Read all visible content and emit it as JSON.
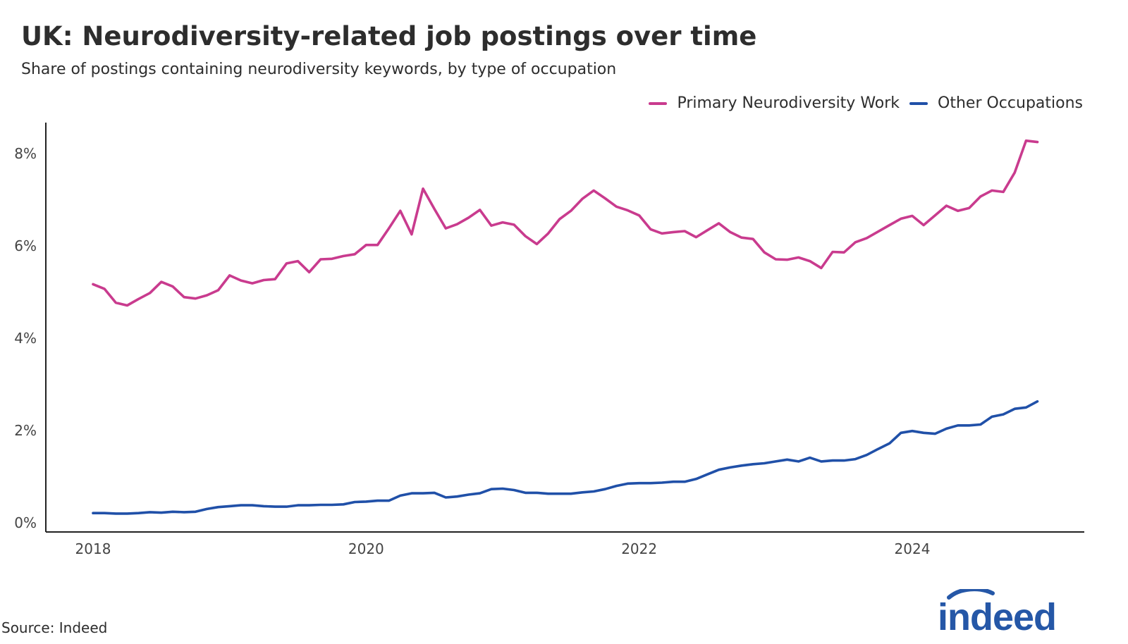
{
  "title": "UK: Neurodiversity-related job postings over time",
  "subtitle": "Share of postings containing neurodiversity keywords, by type of occupation",
  "source": "Source: Indeed",
  "logo_text": "indeed",
  "colors": {
    "primary": "#c93b8e",
    "other": "#2050a8",
    "logo": "#2557a7",
    "axis": "#222222"
  },
  "chart_data": {
    "type": "line",
    "title": "UK: Neurodiversity-related job postings over time",
    "subtitle": "Share of postings containing neurodiversity keywords, by type of occupation",
    "xlabel": "",
    "ylabel": "",
    "x_start": "2018-01",
    "x_step": "month",
    "xlim": [
      "2017-11",
      "2025-04"
    ],
    "ylim": [
      0,
      8.6
    ],
    "x_ticks": [
      {
        "date": "2018-01",
        "label": "2018"
      },
      {
        "date": "2020-01",
        "label": "2020"
      },
      {
        "date": "2022-01",
        "label": "2022"
      },
      {
        "date": "2024-01",
        "label": "2024"
      }
    ],
    "y_ticks": [
      {
        "value": 0,
        "label": "0%"
      },
      {
        "value": 2,
        "label": "2%"
      },
      {
        "value": 4,
        "label": "4%"
      },
      {
        "value": 6,
        "label": "6%"
      },
      {
        "value": 8,
        "label": "8%"
      }
    ],
    "grid": false,
    "legend_position": "top-right",
    "series": [
      {
        "name": "Primary Neurodiversity Work",
        "color": "#c93b8e",
        "values": [
          5.17,
          5.07,
          4.77,
          4.71,
          4.85,
          4.98,
          5.22,
          5.12,
          4.89,
          4.86,
          4.93,
          5.04,
          5.36,
          5.25,
          5.19,
          5.26,
          5.28,
          5.62,
          5.67,
          5.43,
          5.71,
          5.72,
          5.78,
          5.82,
          6.02,
          6.02,
          6.38,
          6.76,
          6.25,
          7.24,
          6.8,
          6.38,
          6.47,
          6.61,
          6.78,
          6.44,
          6.51,
          6.46,
          6.21,
          6.04,
          6.27,
          6.58,
          6.76,
          7.02,
          7.2,
          7.03,
          6.85,
          6.77,
          6.66,
          6.36,
          6.27,
          6.3,
          6.32,
          6.19,
          6.34,
          6.49,
          6.3,
          6.18,
          6.15,
          5.86,
          5.71,
          5.7,
          5.75,
          5.67,
          5.52,
          5.87,
          5.86,
          6.08,
          6.17,
          6.31,
          6.45,
          6.59,
          6.65,
          6.45,
          6.66,
          6.87,
          6.76,
          6.82,
          7.07,
          7.2,
          7.17,
          7.59,
          8.28,
          8.25
        ]
      },
      {
        "name": "Other Occupations",
        "color": "#2050a8",
        "values": [
          0.21,
          0.21,
          0.2,
          0.2,
          0.21,
          0.23,
          0.22,
          0.24,
          0.23,
          0.24,
          0.3,
          0.34,
          0.36,
          0.38,
          0.38,
          0.36,
          0.35,
          0.35,
          0.38,
          0.38,
          0.39,
          0.39,
          0.4,
          0.45,
          0.46,
          0.48,
          0.48,
          0.59,
          0.64,
          0.64,
          0.65,
          0.55,
          0.57,
          0.61,
          0.64,
          0.73,
          0.74,
          0.71,
          0.65,
          0.65,
          0.63,
          0.63,
          0.63,
          0.66,
          0.68,
          0.73,
          0.8,
          0.85,
          0.86,
          0.86,
          0.87,
          0.89,
          0.89,
          0.95,
          1.05,
          1.15,
          1.2,
          1.24,
          1.27,
          1.29,
          1.33,
          1.37,
          1.33,
          1.41,
          1.33,
          1.35,
          1.35,
          1.38,
          1.47,
          1.6,
          1.72,
          1.95,
          1.99,
          1.95,
          1.93,
          2.04,
          2.11,
          2.11,
          2.13,
          2.3,
          2.35,
          2.47,
          2.5,
          2.63
        ]
      }
    ]
  }
}
